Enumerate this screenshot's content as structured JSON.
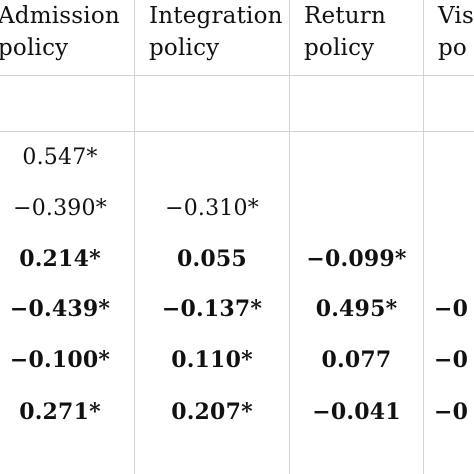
{
  "headers": [
    {
      "line1": "Admission",
      "line2": "policy"
    },
    {
      "line1": "Integration",
      "line2": "policy"
    },
    {
      "line1": "Return",
      "line2": "policy"
    },
    {
      "line1": "Vis",
      "line2": "po"
    }
  ],
  "rows": [
    {
      "c1": "0.547*",
      "c2": "",
      "c3": "",
      "c4": "",
      "bold": false
    },
    {
      "c1": "−0.390*",
      "c2": "−0.310*",
      "c3": "",
      "c4": "",
      "bold": false
    },
    {
      "c1": "0.214*",
      "c2": "0.055",
      "c3": "−0.099*",
      "c4": "",
      "bold": true
    },
    {
      "c1": "−0.439*",
      "c2": "−0.137*",
      "c3": "0.495*",
      "c4": "−0",
      "bold": true
    },
    {
      "c1": "−0.100*",
      "c2": "0.110*",
      "c3": "0.077",
      "c4": "−0",
      "bold": true
    },
    {
      "c1": "0.271*",
      "c2": "0.207*",
      "c3": "−0.041",
      "c4": "−0",
      "bold": true
    }
  ]
}
